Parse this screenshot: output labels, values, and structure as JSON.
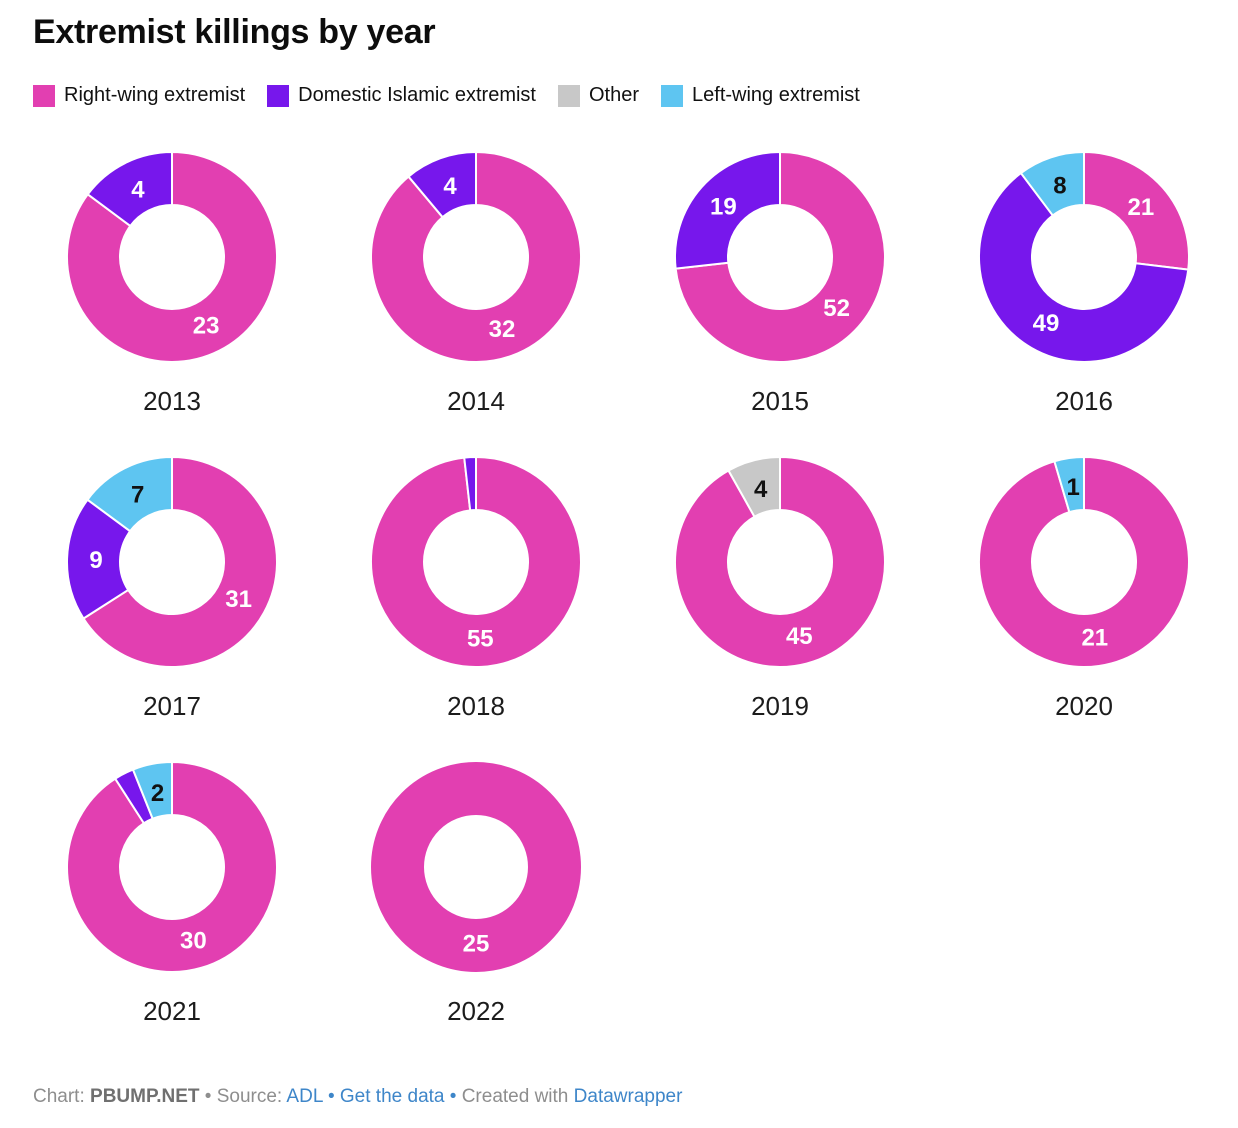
{
  "title": "Extremist killings by year",
  "legend": {
    "items": [
      {
        "label": "Right-wing extremist",
        "color": "#E23FB1"
      },
      {
        "label": "Domestic Islamic extremist",
        "color": "#7717EC"
      },
      {
        "label": "Other",
        "color": "#C8C8C8"
      },
      {
        "label": "Left-wing extremist",
        "color": "#5EC5F1"
      }
    ]
  },
  "chart_data": {
    "type": "pie",
    "variant": "donut-small-multiples",
    "title": "Extremist killings by year",
    "categories": [
      "Right-wing extremist",
      "Domestic Islamic extremist",
      "Other",
      "Left-wing extremist"
    ],
    "category_colors": {
      "Right-wing extremist": "#E23FB1",
      "Domestic Islamic extremist": "#7717EC",
      "Other": "#C8C8C8",
      "Left-wing extremist": "#5EC5F1"
    },
    "value_label_colors": {
      "Right-wing extremist": "#ffffff",
      "Domestic Islamic extremist": "#ffffff",
      "Other": "#111111",
      "Left-wing extremist": "#111111"
    },
    "slice_order": "clockwise-from-top",
    "charts": [
      {
        "year": "2013",
        "segments": [
          {
            "category": "Right-wing extremist",
            "value": 23,
            "label": "23"
          },
          {
            "category": "Domestic Islamic extremist",
            "value": 4,
            "label": "4"
          }
        ]
      },
      {
        "year": "2014",
        "segments": [
          {
            "category": "Right-wing extremist",
            "value": 32,
            "label": "32"
          },
          {
            "category": "Domestic Islamic extremist",
            "value": 4,
            "label": "4"
          }
        ]
      },
      {
        "year": "2015",
        "segments": [
          {
            "category": "Right-wing extremist",
            "value": 52,
            "label": "52"
          },
          {
            "category": "Domestic Islamic extremist",
            "value": 19,
            "label": "19"
          }
        ]
      },
      {
        "year": "2016",
        "segments": [
          {
            "category": "Right-wing extremist",
            "value": 21,
            "label": "21"
          },
          {
            "category": "Domestic Islamic extremist",
            "value": 49,
            "label": "49"
          },
          {
            "category": "Left-wing extremist",
            "value": 8,
            "label": "8"
          }
        ]
      },
      {
        "year": "2017",
        "segments": [
          {
            "category": "Right-wing extremist",
            "value": 31,
            "label": "31"
          },
          {
            "category": "Domestic Islamic extremist",
            "value": 9,
            "label": "9"
          },
          {
            "category": "Left-wing extremist",
            "value": 7,
            "label": "7"
          }
        ]
      },
      {
        "year": "2018",
        "segments": [
          {
            "category": "Right-wing extremist",
            "value": 55,
            "label": "55"
          },
          {
            "category": "Domestic Islamic extremist",
            "value": 1,
            "label": ""
          }
        ]
      },
      {
        "year": "2019",
        "segments": [
          {
            "category": "Right-wing extremist",
            "value": 45,
            "label": "45"
          },
          {
            "category": "Other",
            "value": 4,
            "label": "4"
          }
        ]
      },
      {
        "year": "2020",
        "segments": [
          {
            "category": "Right-wing extremist",
            "value": 21,
            "label": "21"
          },
          {
            "category": "Left-wing extremist",
            "value": 1,
            "label": "1"
          }
        ]
      },
      {
        "year": "2021",
        "segments": [
          {
            "category": "Right-wing extremist",
            "value": 30,
            "label": "30"
          },
          {
            "category": "Domestic Islamic extremist",
            "value": 1,
            "label": ""
          },
          {
            "category": "Left-wing extremist",
            "value": 2,
            "label": "2"
          }
        ]
      },
      {
        "year": "2022",
        "segments": [
          {
            "category": "Right-wing extremist",
            "value": 25,
            "label": "25"
          }
        ]
      }
    ]
  },
  "footer": {
    "parts": [
      {
        "text": "Chart: ",
        "style": "muted"
      },
      {
        "text": "PBUMP.NET",
        "style": "muted-bold"
      },
      {
        "text": " • ",
        "style": "muted"
      },
      {
        "text": "Source: ",
        "style": "muted"
      },
      {
        "text": "ADL",
        "style": "link"
      },
      {
        "text": " • ",
        "style": "link"
      },
      {
        "text": "Get the data",
        "style": "link"
      },
      {
        "text": " • ",
        "style": "link"
      },
      {
        "text": "Created with ",
        "style": "muted"
      },
      {
        "text": "Datawrapper",
        "style": "link"
      }
    ]
  }
}
